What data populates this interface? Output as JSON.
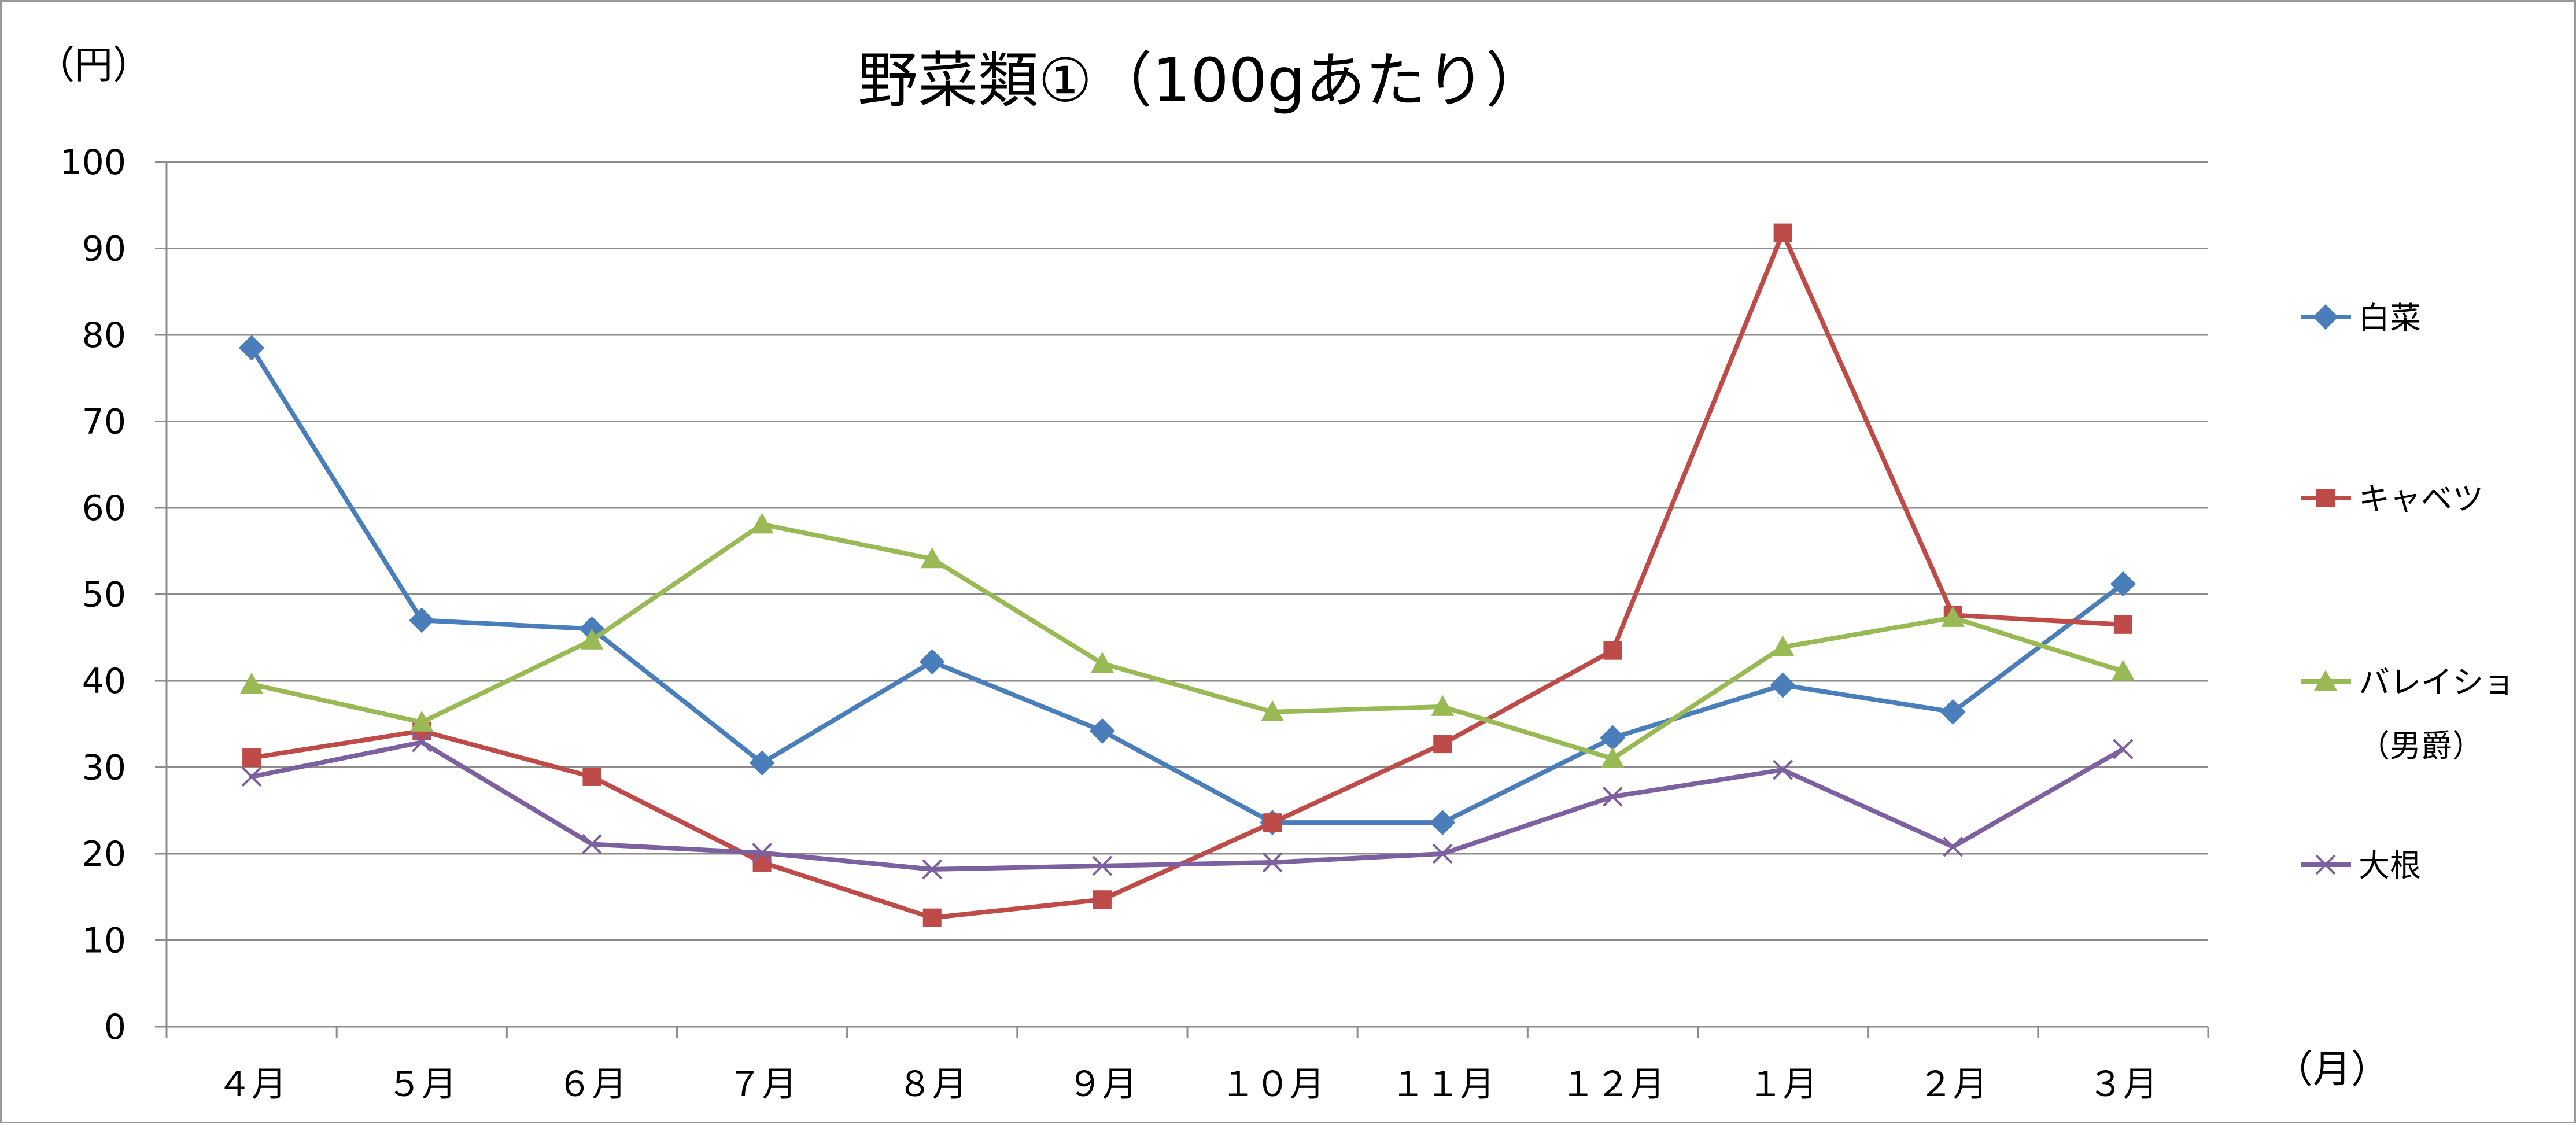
{
  "chart_data": {
    "type": "line",
    "title": "野菜類①（100gあたり）",
    "ylabel": "（円）",
    "xlabel": "（月）",
    "ylim": [
      0,
      100
    ],
    "yticks": [
      0,
      10,
      20,
      30,
      40,
      50,
      60,
      70,
      80,
      90,
      100
    ],
    "categories": [
      "４月",
      "５月",
      "６月",
      "７月",
      "８月",
      "９月",
      "１０月",
      "１１月",
      "１２月",
      "１月",
      "２月",
      "３月"
    ],
    "legend_position": "right",
    "grid": true,
    "series": [
      {
        "name": "白菜",
        "color": "#4a7ebb",
        "marker": "diamond",
        "values": [
          78.5,
          47,
          46,
          30.5,
          42.2,
          34.2,
          23.6,
          23.6,
          33.4,
          39.5,
          36.4,
          51.2
        ]
      },
      {
        "name": "キャベツ",
        "color": "#be4b48",
        "marker": "square",
        "values": [
          31.1,
          34.2,
          28.9,
          19,
          12.6,
          14.7,
          23.6,
          32.7,
          43.5,
          91.8,
          47.6,
          46.5
        ]
      },
      {
        "name": "バレイショ（男爵）",
        "legend_lines": [
          "バレイショ",
          "（男爵）"
        ],
        "color": "#98b954",
        "marker": "triangle",
        "values": [
          39.6,
          35.2,
          44.7,
          58.1,
          54.1,
          42,
          36.4,
          37,
          31,
          43.9,
          47.3,
          41.1
        ]
      },
      {
        "name": "大根",
        "color": "#7d60a0",
        "marker": "x",
        "values": [
          28.9,
          32.9,
          21.1,
          20.1,
          18.2,
          18.6,
          19,
          20,
          26.6,
          29.7,
          20.8,
          32.1
        ]
      }
    ]
  }
}
